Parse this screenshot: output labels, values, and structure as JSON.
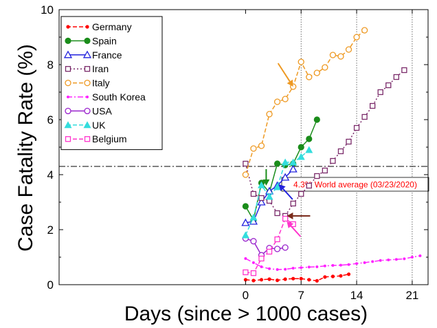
{
  "chart_data": {
    "type": "line",
    "title": "",
    "xlabel": "Days (since > 1000 cases)",
    "ylabel": "Case Fatality Rate (%)",
    "xlim": [
      -23.5,
      23
    ],
    "ylim": [
      0,
      10
    ],
    "xticks": [
      0,
      7,
      14,
      21
    ],
    "yticks": [
      0,
      2,
      4,
      6,
      8,
      10
    ],
    "grid": false,
    "legend_position": "top-left",
    "series": [
      {
        "name": "Germany",
        "color": "#ff0000",
        "marker": "dot",
        "dash": "dashed",
        "x": [
          0,
          1,
          2,
          3,
          4,
          5,
          6,
          7,
          8,
          9,
          10,
          11,
          12,
          13
        ],
        "y": [
          0.18,
          0.15,
          0.18,
          0.2,
          0.16,
          0.2,
          0.22,
          0.22,
          0.18,
          0.14,
          0.28,
          0.3,
          0.32,
          0.38
        ]
      },
      {
        "name": "Spain",
        "color": "#1a8c1a",
        "marker": "filled-circle",
        "dash": "solid",
        "x": [
          0,
          1,
          2,
          3,
          4,
          5,
          6,
          7,
          8,
          9
        ],
        "y": [
          2.85,
          2.35,
          3.7,
          3.35,
          4.4,
          4.35,
          4.4,
          5.0,
          5.3,
          6.0
        ]
      },
      {
        "name": "France",
        "color": "#2222dd",
        "marker": "open-triangle",
        "dash": "solid",
        "x": [
          0,
          1,
          2,
          3,
          4,
          5,
          6
        ],
        "y": [
          2.25,
          2.3,
          3.0,
          3.4,
          3.6,
          3.9,
          4.2
        ]
      },
      {
        "name": "Iran",
        "color": "#7a2a6a",
        "marker": "open-square",
        "dash": "dotted",
        "x": [
          0,
          1,
          2,
          3,
          4,
          5,
          6,
          7,
          8,
          9,
          10,
          11,
          12,
          13,
          14,
          15,
          16,
          17,
          18,
          19,
          20
        ],
        "y": [
          4.4,
          3.3,
          3.15,
          3.05,
          2.6,
          2.5,
          2.95,
          3.3,
          3.6,
          3.95,
          4.15,
          4.5,
          4.85,
          5.2,
          5.7,
          6.1,
          6.5,
          7.0,
          7.25,
          7.55,
          7.8
        ]
      },
      {
        "name": "Italy",
        "color": "#ee9922",
        "marker": "open-circle",
        "dash": "dashed",
        "x": [
          0,
          1,
          2,
          3,
          4,
          5,
          6,
          7,
          8,
          9,
          10,
          11,
          12,
          13,
          14,
          15
        ],
        "y": [
          4.0,
          4.95,
          5.05,
          6.2,
          6.65,
          6.75,
          7.2,
          8.1,
          7.55,
          7.7,
          7.9,
          8.35,
          8.3,
          8.55,
          9.0,
          9.25
        ]
      },
      {
        "name": "South Korea",
        "color": "#ff22ff",
        "marker": "small-dot",
        "dash": "dashdot",
        "x": [
          0,
          1,
          2,
          3,
          4,
          5,
          6,
          7,
          8,
          9,
          10,
          11,
          12,
          13,
          14,
          15,
          16,
          17,
          18,
          19,
          20,
          21,
          22
        ],
        "y": [
          0.95,
          0.8,
          0.65,
          0.58,
          0.55,
          0.56,
          0.6,
          0.62,
          0.64,
          0.65,
          0.68,
          0.7,
          0.71,
          0.73,
          0.77,
          0.8,
          0.84,
          0.88,
          0.9,
          0.92,
          0.94,
          1.0,
          1.05
        ]
      },
      {
        "name": "USA",
        "color": "#9922cc",
        "marker": "open-circle",
        "dash": "solid",
        "x": [
          0,
          1,
          2,
          3,
          4,
          5
        ],
        "y": [
          1.68,
          1.58,
          1.07,
          1.33,
          1.3,
          1.35
        ]
      },
      {
        "name": "UK",
        "color": "#33dddd",
        "marker": "filled-triangle",
        "dash": "dashed",
        "x": [
          0,
          1,
          2,
          3,
          4,
          5,
          6,
          7,
          8
        ],
        "y": [
          1.8,
          2.45,
          3.62,
          3.2,
          3.55,
          4.45,
          4.45,
          4.65,
          4.9
        ]
      },
      {
        "name": "Belgium",
        "color": "#ff33cc",
        "marker": "open-square",
        "dash": "dashed",
        "x": [
          0,
          1,
          2,
          3,
          4,
          5,
          6
        ],
        "y": [
          0.45,
          0.42,
          0.95,
          1.2,
          1.65,
          2.4,
          2.2
        ]
      }
    ],
    "reference_line": {
      "y": 4.3,
      "label": "4.3% World average (03/23/2020)",
      "label_color": "#ff0000"
    },
    "vertical_lines": [
      7,
      14,
      21
    ],
    "annotations": [
      {
        "target_series": "Italy",
        "x": 6,
        "y": 7.2,
        "color": "#ee9922",
        "from": "upper-left"
      },
      {
        "target_series": "Spain",
        "x": 2.6,
        "y": 3.6,
        "color": "#1a8c1a",
        "from": "above"
      },
      {
        "target_series": "France",
        "x": 4.2,
        "y": 3.65,
        "color": "#2222dd",
        "from": "lower-right"
      },
      {
        "target_series": "Iran",
        "x": 5.2,
        "y": 2.5,
        "color": "#7a2a1a",
        "from": "right"
      },
      {
        "target_series": "Belgium",
        "x": 5.2,
        "y": 2.3,
        "color": "#ff33cc",
        "from": "lower-right"
      }
    ]
  }
}
